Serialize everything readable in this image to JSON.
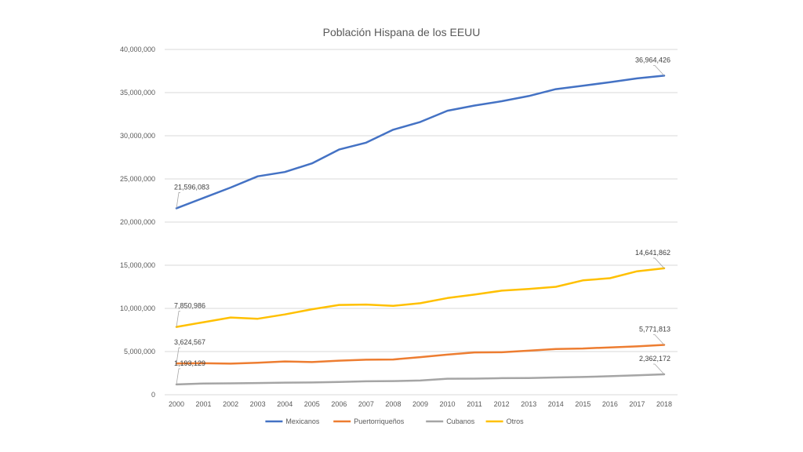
{
  "chart_data": {
    "type": "line",
    "title": "Población Hispana de los EEUU",
    "x": [
      "2000",
      "2001",
      "2002",
      "2003",
      "2004",
      "2005",
      "2006",
      "2007",
      "2008",
      "2009",
      "2010",
      "2011",
      "2012",
      "2013",
      "2014",
      "2015",
      "2016",
      "2017",
      "2018"
    ],
    "ylim": [
      0,
      40000000
    ],
    "yticks": [
      0,
      5000000,
      10000000,
      15000000,
      20000000,
      25000000,
      30000000,
      35000000,
      40000000
    ],
    "ytick_labels": [
      "0",
      "5,000,000",
      "10,000,000",
      "15,000,000",
      "20,000,000",
      "25,000,000",
      "30,000,000",
      "35,000,000",
      "40,000,000"
    ],
    "grid": true,
    "legend_position": "bottom",
    "series": [
      {
        "name": "Mexicanos",
        "color": "#4472c4",
        "values": [
          21596083,
          22800000,
          24000000,
          25300000,
          25800000,
          26800000,
          28400000,
          29200000,
          30700000,
          31600000,
          32900000,
          33500000,
          34000000,
          34600000,
          35400000,
          35800000,
          36200000,
          36650000,
          36964426
        ],
        "start_label": "21,596,083",
        "end_label": "36,964,426"
      },
      {
        "name": "Puertorriqueños",
        "color": "#ed7d31",
        "values": [
          3624567,
          3650000,
          3600000,
          3700000,
          3850000,
          3780000,
          3950000,
          4050000,
          4080000,
          4350000,
          4650000,
          4900000,
          4920000,
          5100000,
          5300000,
          5350000,
          5480000,
          5600000,
          5771813
        ],
        "start_label": "3,624,567",
        "end_label": "5,771,813"
      },
      {
        "name": "Cubanos",
        "color": "#a5a5a5",
        "values": [
          1193129,
          1300000,
          1320000,
          1350000,
          1400000,
          1420000,
          1480000,
          1550000,
          1580000,
          1650000,
          1850000,
          1860000,
          1920000,
          1930000,
          2000000,
          2050000,
          2150000,
          2250000,
          2362172
        ],
        "start_label": "1,193,129",
        "end_label": "2,362,172"
      },
      {
        "name": "Otros",
        "color": "#ffc000",
        "values": [
          7850986,
          8400000,
          8950000,
          8800000,
          9300000,
          9900000,
          10400000,
          10450000,
          10300000,
          10600000,
          11200000,
          11600000,
          12050000,
          12250000,
          12500000,
          13250000,
          13500000,
          14300000,
          14641862
        ],
        "start_label": "7,850,986",
        "end_label": "14,641,862"
      }
    ]
  }
}
